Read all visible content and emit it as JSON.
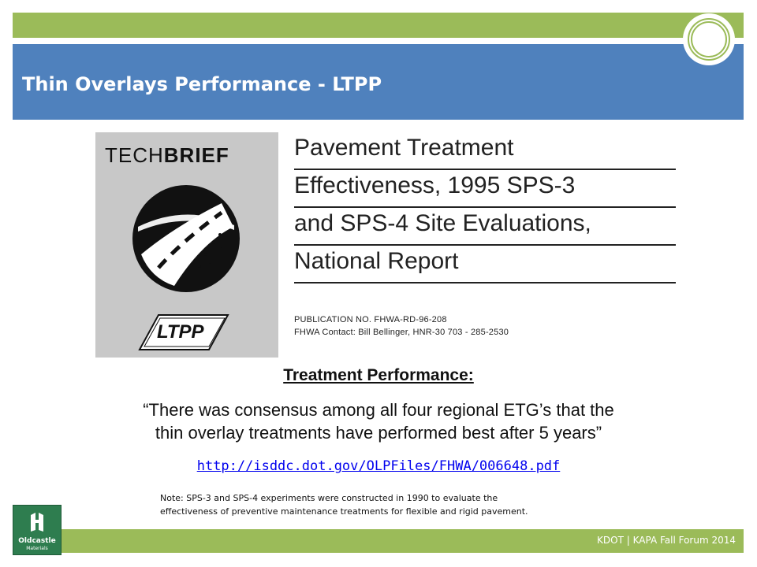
{
  "slide": {
    "title": "Thin Overlays Performance - LTPP",
    "footer": "KDOT | KAPA Fall Forum 2014",
    "accent_green": "#9bbb59",
    "accent_blue": "#4f81bd"
  },
  "techbrief": {
    "brand_tech": "TECH",
    "brand_brief": "BRIEF",
    "ltpp_label": "LTPP",
    "title_lines": [
      "Pavement Treatment",
      "Effectiveness, 1995 SPS-3",
      "and SPS-4 Site Evaluations,",
      "National Report"
    ],
    "publication": "PUBLICATION NO. FHWA-RD-96-208",
    "contact": "FHWA Contact:  Bill Bellinger, HNR-30   703 - 285-2530"
  },
  "content": {
    "heading": "Treatment Performance:",
    "quote_line1": "“There was consensus among all four regional ETG’s that the",
    "quote_line2": "thin overlay treatments have performed best after 5 years”",
    "link": "http://isddc.dot.gov/OLPFiles/FHWA/006648.pdf",
    "note_line1": "Note: SPS-3 and SPS-4 experiments were constructed in 1990 to evaluate the",
    "note_line2": "effectiveness of preventive maintenance treatments for flexible and rigid pavement."
  },
  "logo": {
    "brand": "Oldcastle",
    "sub": "Materials"
  }
}
